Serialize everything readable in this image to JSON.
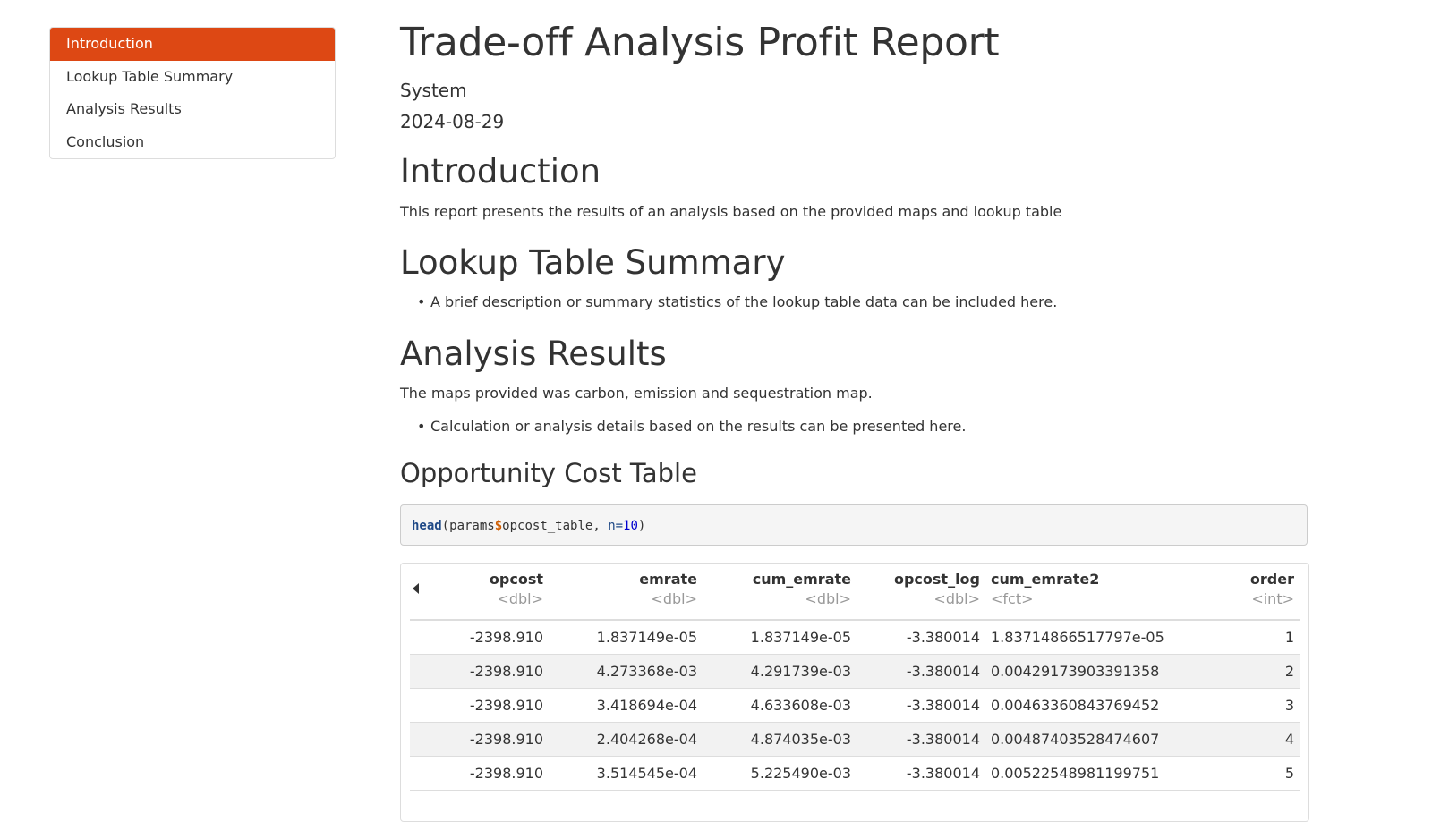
{
  "toc": [
    {
      "label": "Introduction",
      "active": true
    },
    {
      "label": "Lookup Table Summary",
      "active": false
    },
    {
      "label": "Analysis Results",
      "active": false
    },
    {
      "label": "Conclusion",
      "active": false
    }
  ],
  "header": {
    "title": "Trade-off Analysis Profit Report",
    "author": "System",
    "date": "2024-08-29"
  },
  "sections": {
    "introduction": {
      "heading": "Introduction",
      "text": "This report presents the results of an analysis based on the provided maps and lookup table"
    },
    "lookup": {
      "heading": "Lookup Table Summary",
      "bullet": "A brief description or summary statistics of the lookup table data can be included here."
    },
    "analysis": {
      "heading": "Analysis Results",
      "text": "The maps provided was carbon, emission and sequestration map.",
      "bullet": "Calculation or analysis details based on the results can be presented here."
    },
    "opportunity": {
      "heading": "Opportunity Cost Table",
      "code": {
        "fn": "head",
        "open": "(params",
        "op": "$",
        "field": "opcost_table, ",
        "arg": "n=",
        "num": "10",
        "close": ")"
      }
    }
  },
  "table": {
    "columns": [
      {
        "name": "opcost",
        "type": "<dbl>",
        "align": "r"
      },
      {
        "name": "emrate",
        "type": "<dbl>",
        "align": "r"
      },
      {
        "name": "cum_emrate",
        "type": "<dbl>",
        "align": "r"
      },
      {
        "name": "opcost_log",
        "type": "<dbl>",
        "align": "r"
      },
      {
        "name": "cum_emrate2",
        "type": "<fct>",
        "align": "l"
      },
      {
        "name": "order",
        "type": "<int>",
        "align": "r"
      }
    ],
    "rows": [
      [
        "-2398.910",
        "1.837149e-05",
        "1.837149e-05",
        "-3.380014",
        "1.83714866517797e-05",
        "1"
      ],
      [
        "-2398.910",
        "4.273368e-03",
        "4.291739e-03",
        "-3.380014",
        "0.00429173903391358",
        "2"
      ],
      [
        "-2398.910",
        "3.418694e-04",
        "4.633608e-03",
        "-3.380014",
        "0.00463360843769452",
        "3"
      ],
      [
        "-2398.910",
        "2.404268e-04",
        "4.874035e-03",
        "-3.380014",
        "0.00487403528474607",
        "4"
      ],
      [
        "-2398.910",
        "3.514545e-04",
        "5.225490e-03",
        "-3.380014",
        "0.00522548981199751",
        "5"
      ]
    ]
  },
  "colors": {
    "accent": "#dd4814"
  }
}
